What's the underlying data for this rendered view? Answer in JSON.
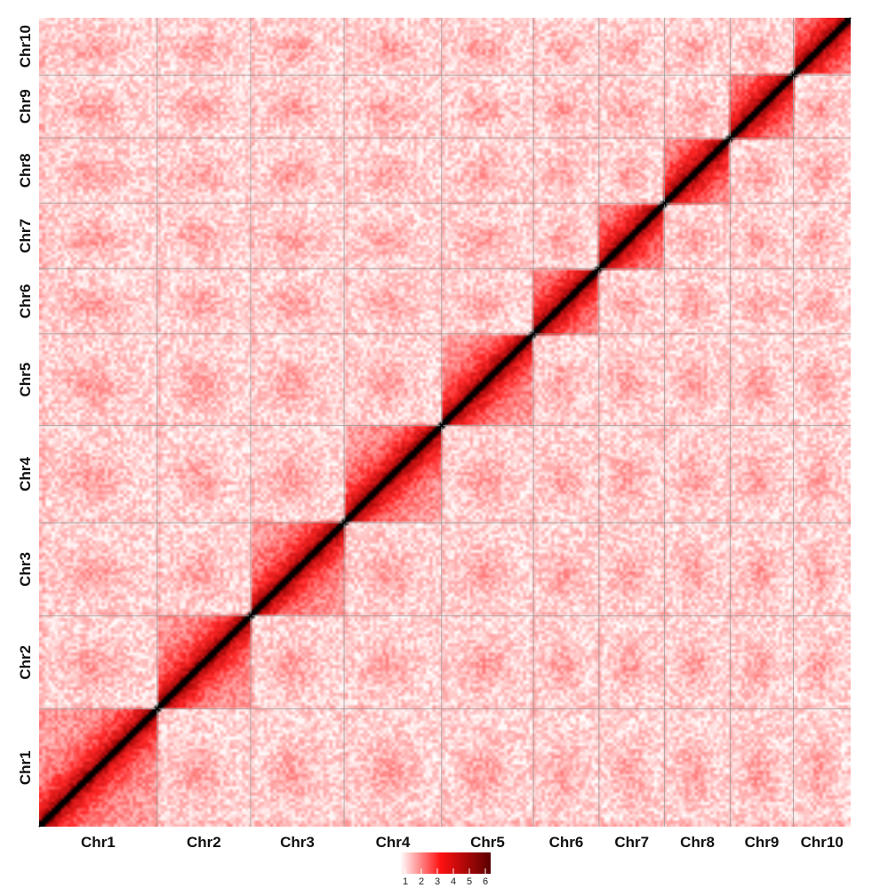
{
  "chart_data": {
    "type": "heatmap",
    "title": "",
    "xlabel": "",
    "ylabel": "",
    "chromosomes": [
      "Chr1",
      "Chr2",
      "Chr3",
      "Chr4",
      "Chr5",
      "Chr6",
      "Chr7",
      "Chr8",
      "Chr9",
      "Chr10"
    ],
    "relative_lengths": [
      1.44,
      1.14,
      1.14,
      1.19,
      1.12,
      0.8,
      0.8,
      0.8,
      0.77,
      0.7
    ],
    "x_tick_labels": [
      "Chr1",
      "Chr2",
      "Chr3",
      "Chr4",
      "Chr5",
      "Chr6",
      "Chr7",
      "Chr8",
      "Chr9",
      "Chr10"
    ],
    "y_tick_labels": [
      "Chr1",
      "Chr2",
      "Chr3",
      "Chr4",
      "Chr5",
      "Chr6",
      "Chr7",
      "Chr8",
      "Chr9",
      "Chr10"
    ],
    "color_scale": {
      "ticks": [
        "1",
        "2",
        "3",
        "4",
        "5",
        "6"
      ],
      "min": 1,
      "max": 6,
      "colors": [
        "#ffffff",
        "#ff0000",
        "#5a0000"
      ]
    },
    "diagonal_color": "#000000",
    "background_color": "#fde6e6",
    "grid": true,
    "legend_position": "bottom-center"
  }
}
